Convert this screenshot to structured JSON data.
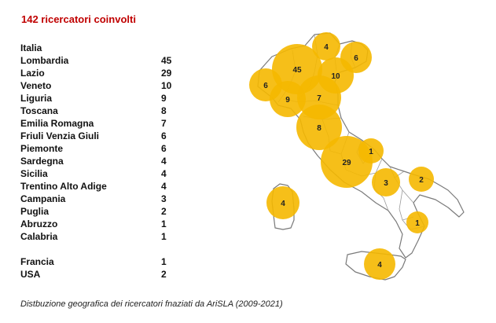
{
  "title": "142 ricercatori coinvolti",
  "table": {
    "header": "Italia",
    "italy": [
      {
        "name": "Lombardia",
        "value": "45"
      },
      {
        "name": "Lazio",
        "value": "29"
      },
      {
        "name": "Veneto",
        "value": "10"
      },
      {
        "name": "Liguria",
        "value": "9"
      },
      {
        "name": "Toscana",
        "value": "8"
      },
      {
        "name": "Emilia  Romagna",
        "value": "7"
      },
      {
        "name": "Friuli Venzia Giuli",
        "value": "6"
      },
      {
        "name": "Piemonte",
        "value": "6"
      },
      {
        "name": "Sardegna",
        "value": "4"
      },
      {
        "name": "Sicilia",
        "value": "4"
      },
      {
        "name": "Trentino Alto Adige",
        "value": "4"
      },
      {
        "name": "Campania",
        "value": "3"
      },
      {
        "name": "Puglia",
        "value": "2"
      },
      {
        "name": "Abruzzo",
        "value": "1"
      },
      {
        "name": "Calabria",
        "value": "1"
      }
    ],
    "foreign": [
      {
        "name": "Francia",
        "value": "1"
      },
      {
        "name": "USA",
        "value": "2"
      }
    ]
  },
  "map": {
    "bubble_color": "#f5b800",
    "border_color": "#7a7a7a",
    "bubbles": [
      {
        "region": "Lombardia",
        "value": 45
      },
      {
        "region": "Lazio",
        "value": 29
      },
      {
        "region": "Veneto",
        "value": 10
      },
      {
        "region": "Liguria",
        "value": 9
      },
      {
        "region": "Toscana",
        "value": 8
      },
      {
        "region": "Emilia Romagna",
        "value": 7
      },
      {
        "region": "Friuli Venezia Giulia",
        "value": 6
      },
      {
        "region": "Piemonte",
        "value": 6
      },
      {
        "region": "Sardegna",
        "value": 4
      },
      {
        "region": "Sicilia",
        "value": 4
      },
      {
        "region": "Trentino Alto Adige",
        "value": 4
      },
      {
        "region": "Campania",
        "value": 3
      },
      {
        "region": "Puglia",
        "value": 2
      },
      {
        "region": "Abruzzo",
        "value": 1
      },
      {
        "region": "Calabria",
        "value": 1
      }
    ]
  },
  "caption": "Distbuzione geografica dei ricercatori fnaziati da AriSLA (2009-2021)"
}
